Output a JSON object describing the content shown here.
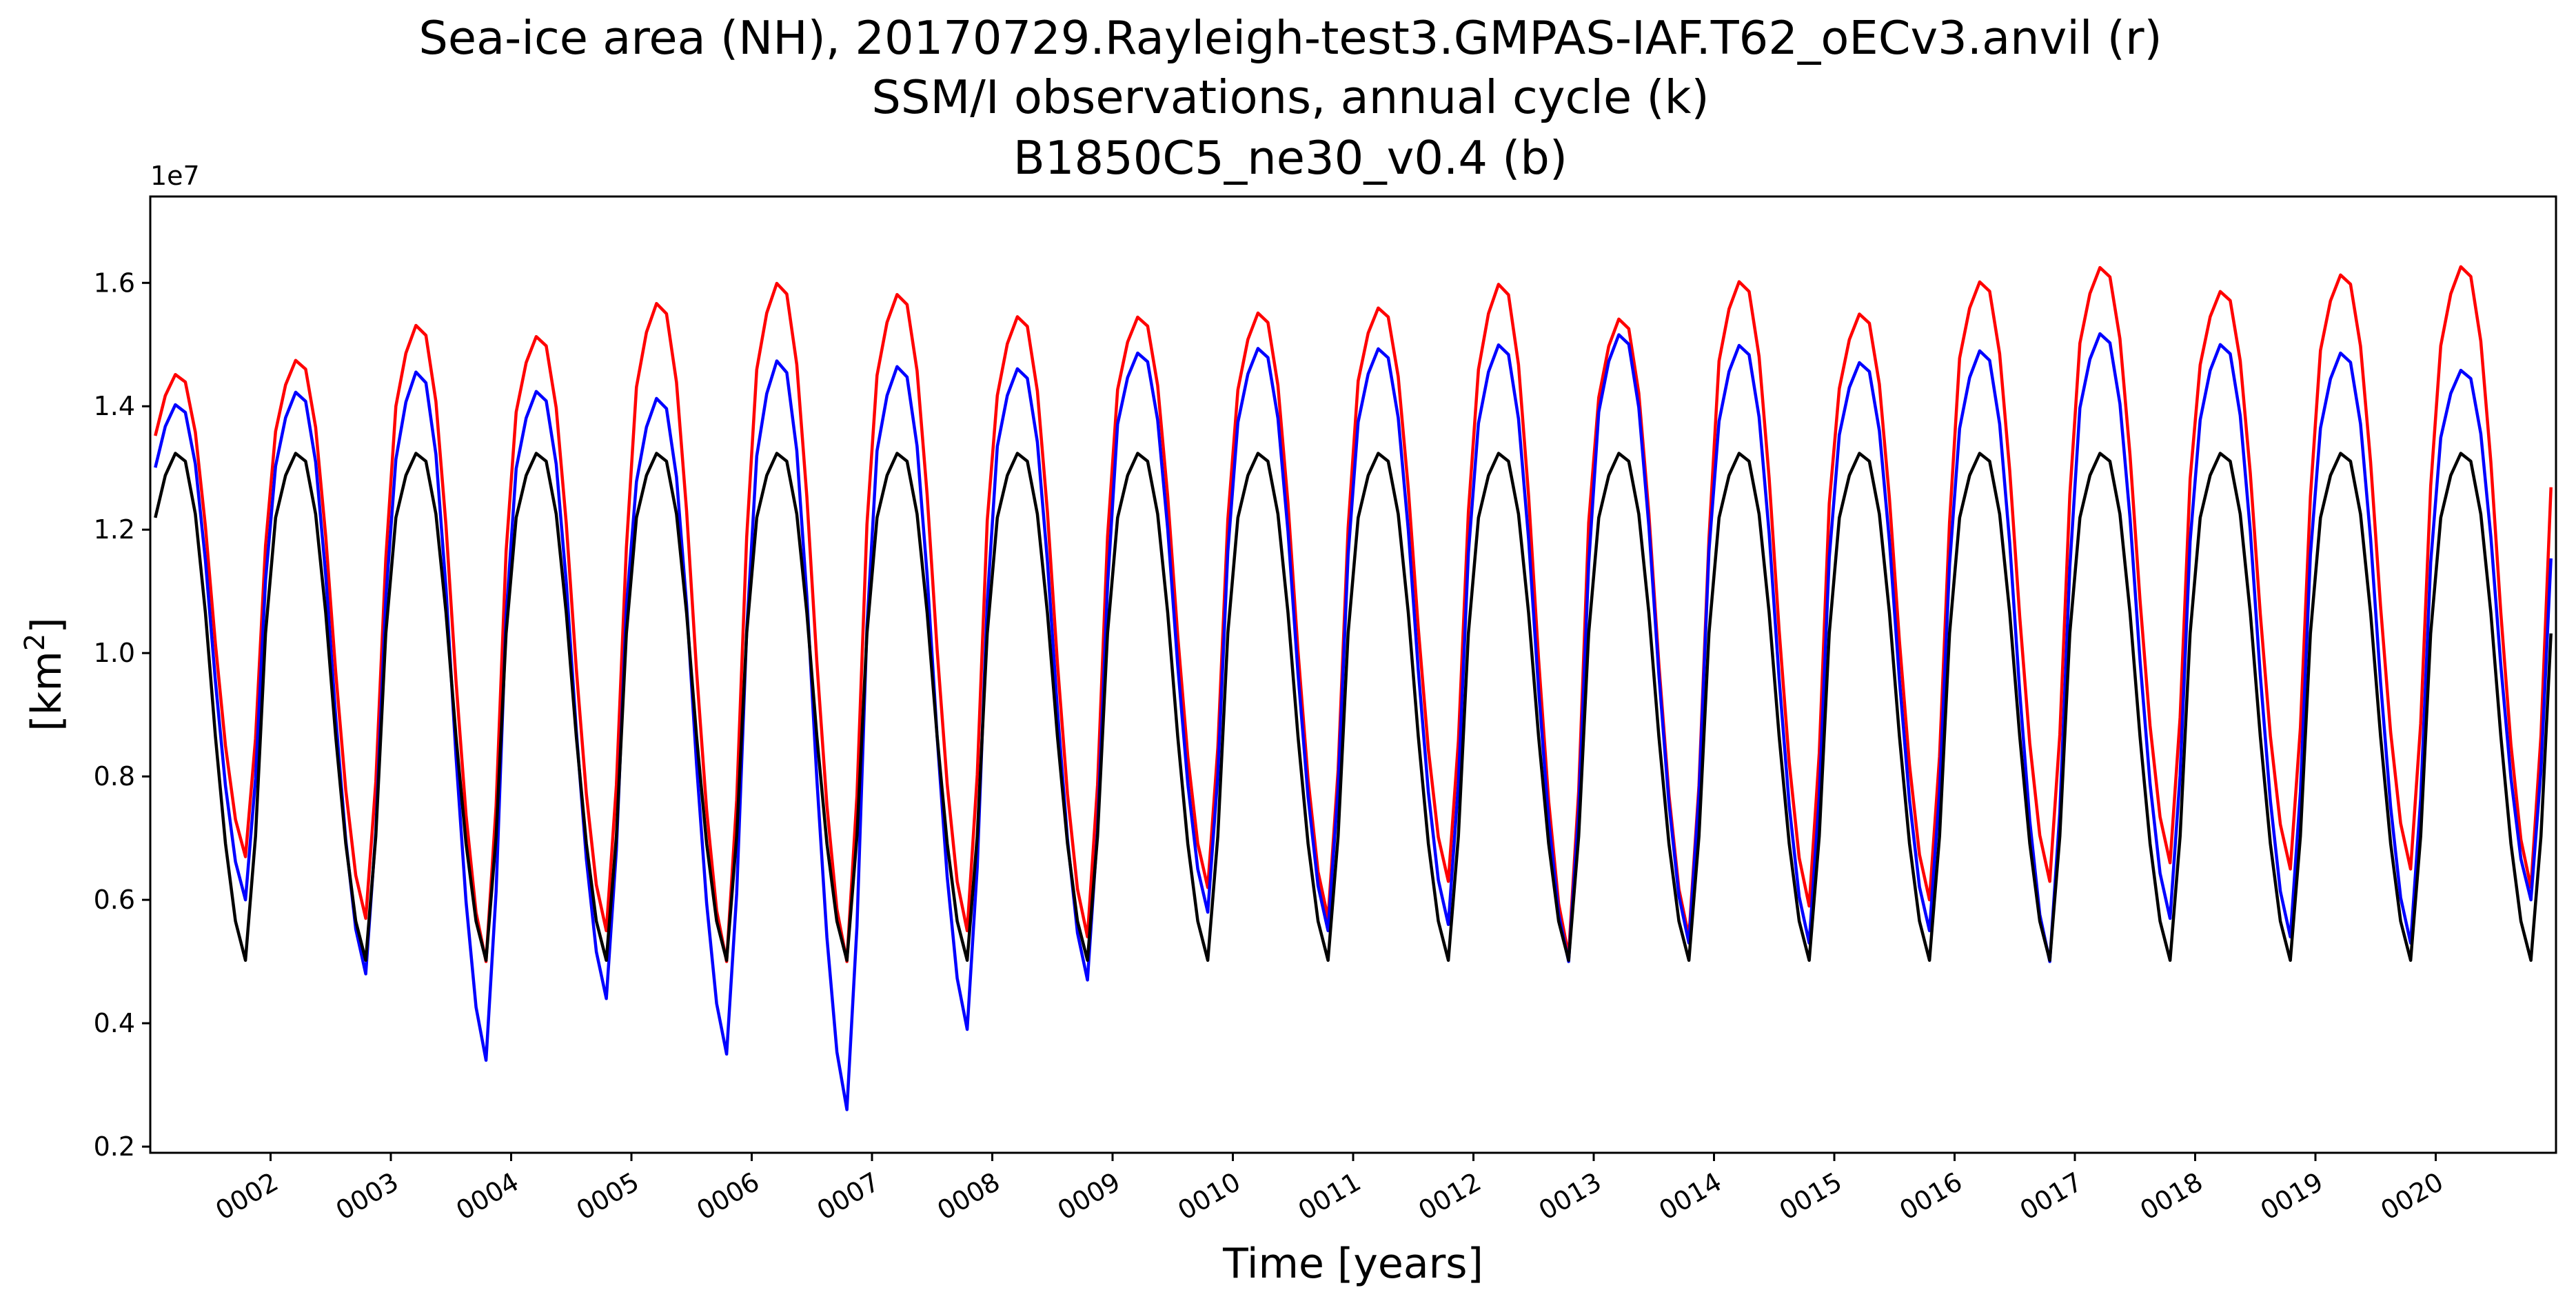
{
  "chart_data": {
    "type": "line",
    "title_lines": [
      "Sea-ice area (NH), 20170729.Rayleigh-test3.GMPAS-IAF.T62_oECv3.anvil (r)",
      "SSM/I observations, annual cycle (k)",
      "B1850C5_ne30_v0.4 (b)"
    ],
    "xlabel": "Time [years]",
    "ylabel": "[km²]",
    "ylabel_base": "[km",
    "ylabel_sup": "2",
    "ylabel_end": "]",
    "y_offset_text": "1e7",
    "xlim": [
      1.0,
      21.0
    ],
    "ylim": [
      0.19,
      1.74
    ],
    "y_ticks": [
      0.2,
      0.4,
      0.6,
      0.8,
      1.0,
      1.2,
      1.4,
      1.6
    ],
    "y_tick_labels": [
      "0.2",
      "0.4",
      "0.6",
      "0.8",
      "1.0",
      "1.2",
      "1.4",
      "1.6"
    ],
    "x_ticks": [
      2,
      3,
      4,
      5,
      6,
      7,
      8,
      9,
      10,
      11,
      12,
      13,
      14,
      15,
      16,
      17,
      18,
      19,
      20
    ],
    "x_tick_labels": [
      "0002",
      "0003",
      "0004",
      "0005",
      "0006",
      "0007",
      "0008",
      "0009",
      "0010",
      "0011",
      "0012",
      "0013",
      "0014",
      "0015",
      "0016",
      "0017",
      "0018",
      "0019",
      "0020"
    ],
    "grid": false,
    "legend": "none",
    "annual_cycle_shape": [
      0.838,
      0.918,
      0.96,
      0.945,
      0.845,
      0.658,
      0.424,
      0.221,
      0.074,
      0.0,
      0.235,
      0.619
    ],
    "series": [
      {
        "key": "r",
        "color": "#ff0000",
        "yearly_max": [
          1.484,
          1.512,
          1.574,
          1.553,
          1.611,
          1.645,
          1.624,
          1.587,
          1.583,
          1.592,
          1.598,
          1.643,
          1.583,
          1.644,
          1.589,
          1.642,
          1.665,
          1.625,
          1.653,
          1.668
        ],
        "yearly_min": [
          0.67,
          0.57,
          0.5,
          0.55,
          0.5,
          0.5,
          0.55,
          0.54,
          0.62,
          0.57,
          0.63,
          0.51,
          0.54,
          0.59,
          0.6,
          0.63,
          0.66,
          0.65,
          0.65,
          0.62
        ]
      },
      {
        "key": "b",
        "color": "#0000ff",
        "yearly_max": [
          1.436,
          1.462,
          1.502,
          1.465,
          1.457,
          1.524,
          1.509,
          1.502,
          1.524,
          1.533,
          1.532,
          1.541,
          1.557,
          1.539,
          1.509,
          1.531,
          1.557,
          1.54,
          1.526,
          1.494
        ],
        "yearly_min": [
          0.6,
          0.48,
          0.34,
          0.44,
          0.35,
          0.26,
          0.39,
          0.47,
          0.58,
          0.55,
          0.56,
          0.5,
          0.53,
          0.53,
          0.55,
          0.5,
          0.57,
          0.54,
          0.53,
          0.6
        ]
      },
      {
        "key": "k",
        "color": "#000000",
        "yearly_max": [
          1.358,
          1.358,
          1.358,
          1.358,
          1.358,
          1.358,
          1.358,
          1.358,
          1.358,
          1.358,
          1.358,
          1.358,
          1.358,
          1.358,
          1.358,
          1.358,
          1.358,
          1.358,
          1.358,
          1.358
        ],
        "yearly_min": [
          0.502,
          0.502,
          0.502,
          0.502,
          0.502,
          0.502,
          0.502,
          0.502,
          0.502,
          0.502,
          0.502,
          0.502,
          0.502,
          0.502,
          0.502,
          0.502,
          0.502,
          0.502,
          0.502,
          0.502
        ]
      }
    ]
  }
}
